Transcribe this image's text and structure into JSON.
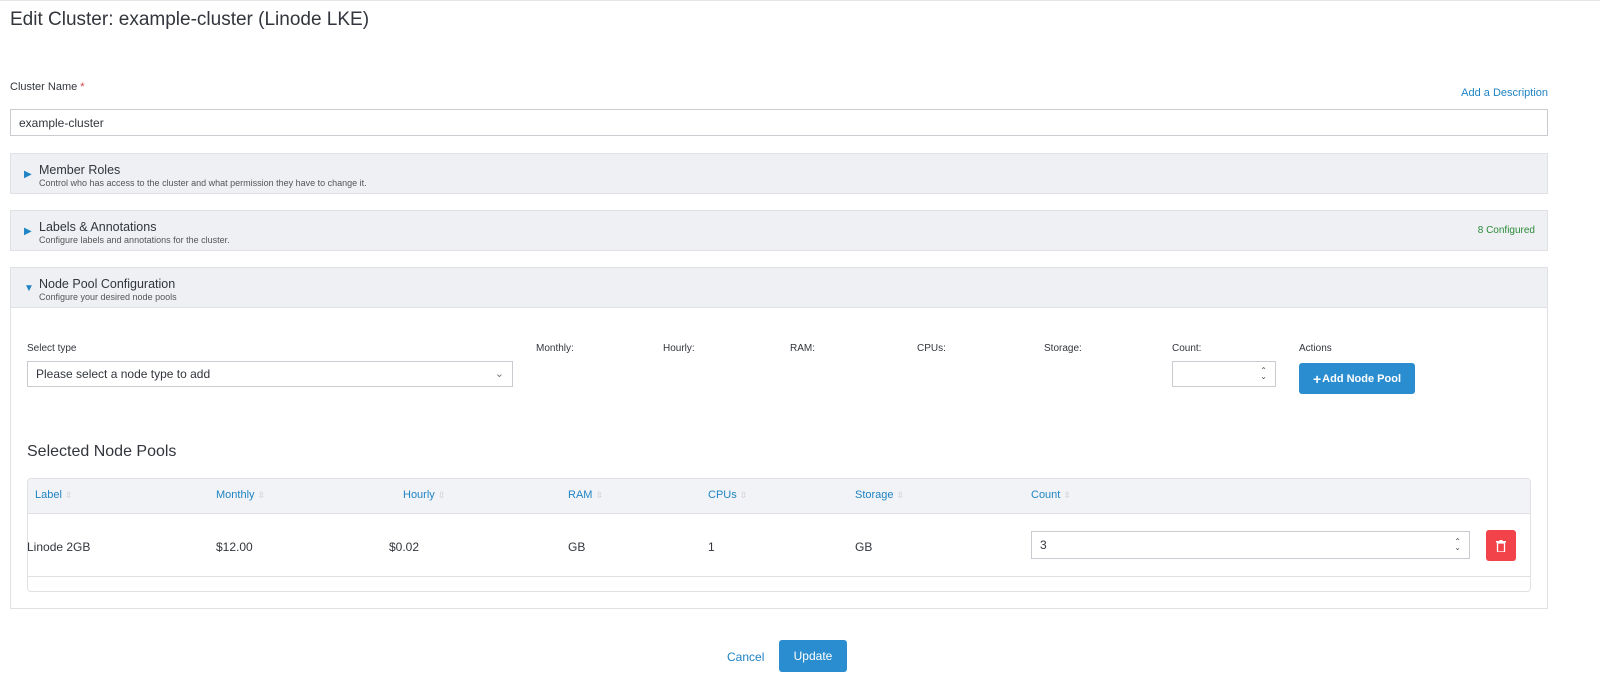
{
  "title": "Edit Cluster: example-cluster (Linode LKE)",
  "cluster_name": {
    "label": "Cluster Name",
    "required": "*",
    "value": "example-cluster",
    "add_description": "Add a Description"
  },
  "sections": [
    {
      "title": "Member Roles",
      "subtitle": "Control who has access to the cluster and what permission they have to change it.",
      "expanded": false
    },
    {
      "title": "Labels & Annotations",
      "subtitle": "Configure labels and annotations for the cluster.",
      "expanded": false,
      "badge": "8 Configured"
    },
    {
      "title": "Node Pool Configuration",
      "subtitle": "Configure your desired node pools",
      "expanded": true
    }
  ],
  "node_pool": {
    "select_label": "Select type",
    "select_placeholder": "Please select a node type to add",
    "columns": [
      "Monthly:",
      "Hourly:",
      "RAM:",
      "CPUs:",
      "Storage:",
      "Count:",
      "Actions"
    ],
    "count_value": "",
    "add_button": "Add Node Pool",
    "selected_heading": "Selected Node Pools",
    "table_headers": [
      "Label",
      "Monthly",
      "Hourly",
      "RAM",
      "CPUs",
      "Storage",
      "Count"
    ],
    "rows": [
      {
        "label": "Linode 2GB",
        "monthly": "$12.00",
        "hourly": "$0.02",
        "ram": "GB",
        "cpus": "1",
        "storage": "GB",
        "count": "3"
      }
    ]
  },
  "footer": {
    "cancel": "Cancel",
    "update": "Update"
  },
  "colors": {
    "accent": "#2a8dd0",
    "link": "#1f84c4",
    "danger": "#f2434a",
    "success": "#2c8a3a"
  }
}
